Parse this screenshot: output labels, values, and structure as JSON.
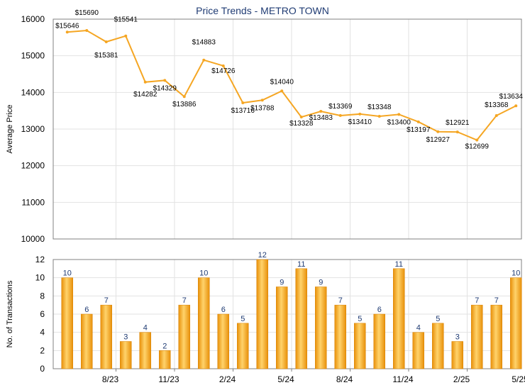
{
  "chart_data": [
    {
      "type": "line",
      "title": "Price Trends - METRO TOWN",
      "ylabel": "Average Price",
      "ylim": [
        10000,
        16000
      ],
      "yticks": [
        10000,
        11000,
        12000,
        13000,
        14000,
        15000,
        16000
      ],
      "color": "#f5a623",
      "grid": true,
      "points": [
        {
          "label": "$15646",
          "value": 15646
        },
        {
          "label": "$15690",
          "value": 15690
        },
        {
          "label": "$15381",
          "value": 15381
        },
        {
          "label": "$15541",
          "value": 15541
        },
        {
          "label": "$14282",
          "value": 14282
        },
        {
          "label": "$14329",
          "value": 14329
        },
        {
          "label": "$13886",
          "value": 13886
        },
        {
          "label": "$14883",
          "value": 14883
        },
        {
          "label": "$14726",
          "value": 14726
        },
        {
          "label": "$13716",
          "value": 13716
        },
        {
          "label": "$13788",
          "value": 13788
        },
        {
          "label": "$14040",
          "value": 14040
        },
        {
          "label": "$13328",
          "value": 13328
        },
        {
          "label": "$13483",
          "value": 13483
        },
        {
          "label": "$13369",
          "value": 13369
        },
        {
          "label": "$13410",
          "value": 13410
        },
        {
          "label": "$13348",
          "value": 13348
        },
        {
          "label": "$13400",
          "value": 13400
        },
        {
          "label": "$13197",
          "value": 13197
        },
        {
          "label": "$12927",
          "value": 12927
        },
        {
          "label": "$12921",
          "value": 12921
        },
        {
          "label": "$12699",
          "value": 12699
        },
        {
          "label": "$13368",
          "value": 13368
        },
        {
          "label": "$13634",
          "value": 13634
        }
      ]
    },
    {
      "type": "bar",
      "ylabel": "No. of Transactions",
      "ylim": [
        0,
        12
      ],
      "yticks": [
        0,
        2,
        4,
        6,
        8,
        10,
        12
      ],
      "color": "#f5a623",
      "grid": true,
      "values": [
        10,
        6,
        7,
        3,
        4,
        2,
        7,
        10,
        6,
        5,
        12,
        9,
        11,
        9,
        7,
        5,
        6,
        11,
        4,
        5,
        3,
        7,
        7,
        10
      ],
      "xticks": [
        {
          "index": 2,
          "label": "8/23"
        },
        {
          "index": 5,
          "label": "11/23"
        },
        {
          "index": 8,
          "label": "2/24"
        },
        {
          "index": 11,
          "label": "5/24"
        },
        {
          "index": 14,
          "label": "8/24"
        },
        {
          "index": 17,
          "label": "11/24"
        },
        {
          "index": 20,
          "label": "2/25"
        },
        {
          "index": 23,
          "label": "5/25"
        }
      ]
    }
  ]
}
